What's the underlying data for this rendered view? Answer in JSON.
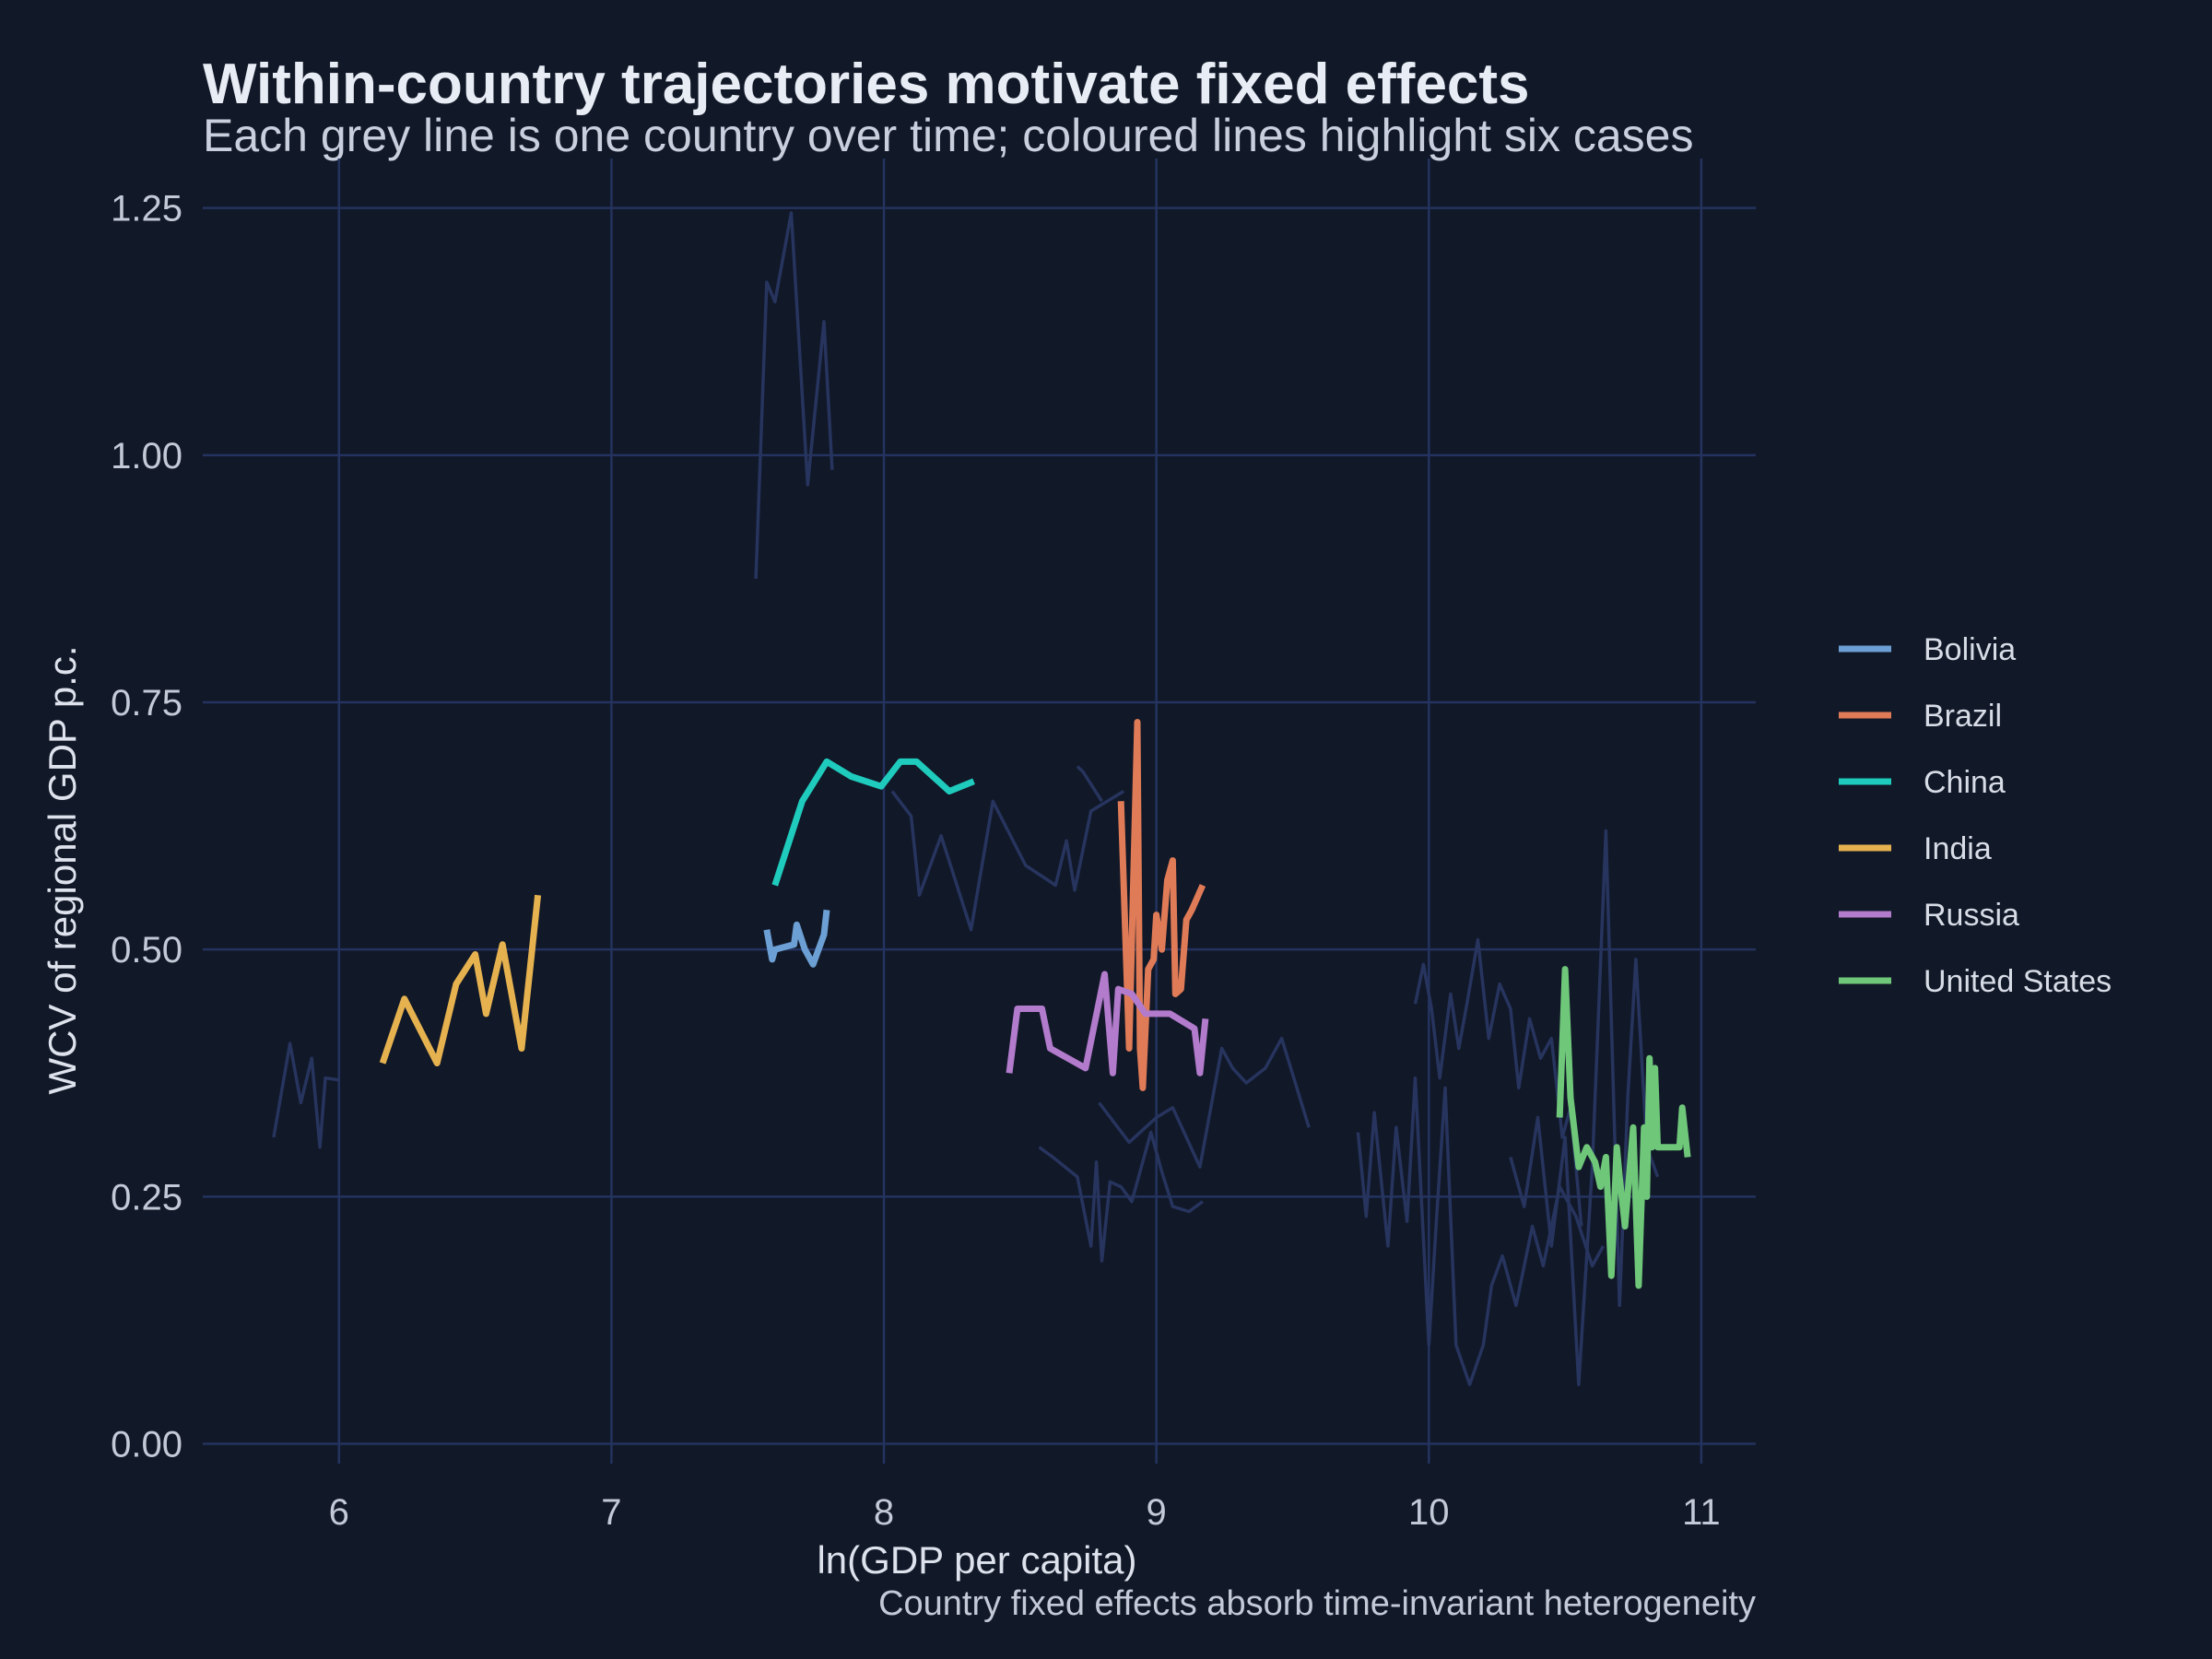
{
  "chart_data": {
    "type": "line",
    "title": "Within-country trajectories motivate fixed effects",
    "subtitle": "Each grey line is one country over time; coloured lines highlight six cases",
    "xlabel": "ln(GDP per capita)",
    "ylabel": "WCV of regional GDP p.c.",
    "caption": "Country fixed effects absorb time-invariant heterogeneity",
    "xlim": [
      5.5,
      11.2
    ],
    "ylim": [
      -0.02,
      1.3
    ],
    "x_ticks": [
      6,
      7,
      8,
      9,
      10,
      11
    ],
    "y_ticks": [
      0.0,
      0.25,
      0.5,
      0.75,
      1.0,
      1.25
    ],
    "x_tick_labels": [
      "6",
      "7",
      "8",
      "9",
      "10",
      "11"
    ],
    "y_tick_labels": [
      "0.00",
      "0.25",
      "0.50",
      "0.75",
      "1.00",
      "1.25"
    ],
    "grid": true,
    "legend_position": "right",
    "background_color": "#111828",
    "grid_color": "#24335f",
    "background_series_color": "#27345e",
    "highlighted_series": [
      {
        "name": "Bolivia",
        "color": "#6c9fd4",
        "x": [
          7.57,
          7.59,
          7.6,
          7.67,
          7.68,
          7.71,
          7.74,
          7.78,
          7.79
        ],
        "y": [
          0.52,
          0.49,
          0.5,
          0.505,
          0.525,
          0.5,
          0.485,
          0.515,
          0.54
        ]
      },
      {
        "name": "Brazil",
        "color": "#e07b57",
        "x": [
          8.87,
          8.9,
          8.93,
          8.94,
          8.95,
          8.97,
          8.99,
          9.0,
          9.02,
          9.04,
          9.06,
          9.07,
          9.09,
          9.11,
          9.13,
          9.17
        ],
        "y": [
          0.65,
          0.4,
          0.73,
          0.4,
          0.36,
          0.48,
          0.49,
          0.535,
          0.5,
          0.57,
          0.59,
          0.455,
          0.46,
          0.53,
          0.54,
          0.565
        ]
      },
      {
        "name": "China",
        "color": "#1fcbbd",
        "x": [
          7.6,
          7.7,
          7.79,
          7.88,
          7.99,
          8.06,
          8.12,
          8.24,
          8.33
        ],
        "y": [
          0.565,
          0.65,
          0.69,
          0.675,
          0.665,
          0.69,
          0.69,
          0.66,
          0.67
        ]
      },
      {
        "name": "India",
        "color": "#e5b24f",
        "x": [
          6.16,
          6.24,
          6.36,
          6.43,
          6.5,
          6.54,
          6.6,
          6.67,
          6.73
        ],
        "y": [
          0.385,
          0.45,
          0.385,
          0.465,
          0.495,
          0.435,
          0.505,
          0.4,
          0.555
        ]
      },
      {
        "name": "Russia",
        "color": "#b27bcc",
        "x": [
          8.46,
          8.49,
          8.58,
          8.61,
          8.74,
          8.81,
          8.84,
          8.86,
          8.91,
          8.96,
          9.05,
          9.14,
          9.16,
          9.18
        ],
        "y": [
          0.375,
          0.44,
          0.44,
          0.4,
          0.38,
          0.475,
          0.375,
          0.46,
          0.455,
          0.435,
          0.435,
          0.42,
          0.375,
          0.43
        ]
      },
      {
        "name": "United States",
        "color": "#6fc77a",
        "x": [
          10.48,
          10.5,
          10.52,
          10.55,
          10.58,
          10.61,
          10.63,
          10.65,
          10.67,
          10.69,
          10.7,
          10.72,
          10.75,
          10.77,
          10.79,
          10.8,
          10.81,
          10.82,
          10.83,
          10.84,
          10.86,
          10.88,
          10.92,
          10.93,
          10.95
        ],
        "y": [
          0.33,
          0.48,
          0.35,
          0.28,
          0.3,
          0.285,
          0.26,
          0.29,
          0.17,
          0.3,
          0.27,
          0.22,
          0.32,
          0.16,
          0.32,
          0.25,
          0.39,
          0.3,
          0.38,
          0.3,
          0.3,
          0.3,
          0.3,
          0.34,
          0.29
        ]
      }
    ],
    "background_series": [
      {
        "x": [
          5.76,
          5.82,
          5.86,
          5.9,
          5.93,
          5.95,
          6.0
        ],
        "y": [
          0.31,
          0.405,
          0.345,
          0.39,
          0.3,
          0.37,
          0.368
        ]
      },
      {
        "x": [
          7.53,
          7.57,
          7.6,
          7.66,
          7.72,
          7.78,
          7.81
        ],
        "y": [
          0.875,
          1.175,
          1.155,
          1.245,
          0.97,
          1.135,
          0.985
        ]
      },
      {
        "x": [
          8.03,
          8.1,
          8.13,
          8.21,
          8.32,
          8.4,
          8.52,
          8.63,
          8.67,
          8.7,
          8.76,
          8.82,
          8.88
        ],
        "y": [
          0.66,
          0.635,
          0.555,
          0.615,
          0.52,
          0.65,
          0.585,
          0.565,
          0.61,
          0.56,
          0.64,
          0.65,
          0.66
        ]
      },
      {
        "x": [
          8.71,
          8.73,
          8.8
        ],
        "y": [
          0.685,
          0.68,
          0.65
        ]
      },
      {
        "x": [
          8.57,
          8.62,
          8.71,
          8.76,
          8.78,
          8.8,
          8.83,
          8.87,
          8.91,
          8.98,
          9.02,
          9.06,
          9.12,
          9.17
        ],
        "y": [
          0.3,
          0.29,
          0.27,
          0.2,
          0.285,
          0.185,
          0.265,
          0.26,
          0.245,
          0.315,
          0.275,
          0.24,
          0.235,
          0.245
        ]
      },
      {
        "x": [
          8.79,
          8.9,
          8.96,
          9.0,
          9.06,
          9.11,
          9.16,
          9.24,
          9.28,
          9.33,
          9.4,
          9.46,
          9.56
        ],
        "y": [
          0.345,
          0.305,
          0.32,
          0.33,
          0.34,
          0.31,
          0.28,
          0.4,
          0.38,
          0.365,
          0.38,
          0.41,
          0.32
        ]
      },
      {
        "x": [
          9.74,
          9.77,
          9.8,
          9.85,
          9.88,
          9.92,
          9.95,
          10.0,
          10.03,
          10.06,
          10.1,
          10.15,
          10.2,
          10.23,
          10.27,
          10.32,
          10.38,
          10.42,
          10.48,
          10.54,
          10.6,
          10.64
        ],
        "y": [
          0.315,
          0.23,
          0.335,
          0.2,
          0.32,
          0.225,
          0.37,
          0.1,
          0.235,
          0.36,
          0.1,
          0.06,
          0.1,
          0.16,
          0.19,
          0.14,
          0.22,
          0.18,
          0.26,
          0.23,
          0.18,
          0.2
        ]
      },
      {
        "x": [
          9.95,
          9.98,
          10.01,
          10.04,
          10.08,
          10.11,
          10.14,
          10.18,
          10.22,
          10.26,
          10.3,
          10.33,
          10.37,
          10.41,
          10.45,
          10.49,
          10.52,
          10.56
        ],
        "y": [
          0.445,
          0.485,
          0.44,
          0.37,
          0.455,
          0.4,
          0.445,
          0.51,
          0.41,
          0.465,
          0.44,
          0.36,
          0.43,
          0.39,
          0.41,
          0.31,
          0.34,
          0.22
        ]
      },
      {
        "x": [
          10.3,
          10.35,
          10.4,
          10.45,
          10.5,
          10.55,
          10.6,
          10.65,
          10.7,
          10.73,
          10.76,
          10.8,
          10.84
        ],
        "y": [
          0.29,
          0.24,
          0.33,
          0.2,
          0.31,
          0.06,
          0.28,
          0.62,
          0.14,
          0.35,
          0.49,
          0.3,
          0.27
        ]
      }
    ]
  }
}
